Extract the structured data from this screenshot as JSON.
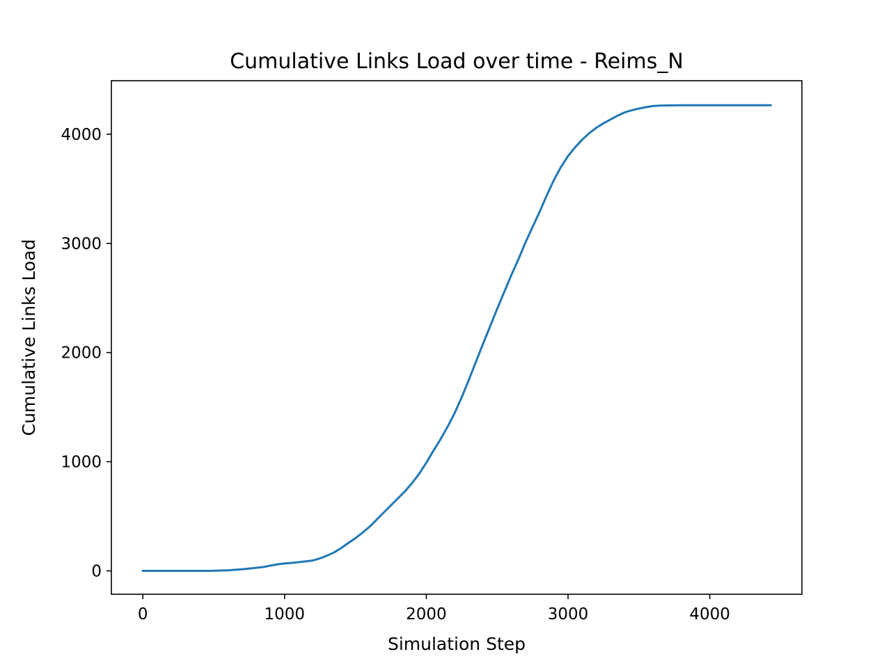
{
  "chart_data": {
    "type": "line",
    "title": "Cumulative Links Load over time - Reims_N",
    "xlabel": "Simulation Step",
    "ylabel": "Cumulative Links Load",
    "xlim": [
      -222,
      4650
    ],
    "ylim": [
      -214,
      4490
    ],
    "xticks": [
      0,
      1000,
      2000,
      3000,
      4000
    ],
    "xtick_labels": [
      "0",
      "1000",
      "2000",
      "3000",
      "4000"
    ],
    "yticks": [
      0,
      1000,
      2000,
      3000,
      4000
    ],
    "ytick_labels": [
      "0",
      "1000",
      "2000",
      "3000",
      "4000"
    ],
    "grid": false,
    "series": [
      {
        "color": "#1f77b4",
        "x": [
          0,
          200,
          400,
          480,
          600,
          700,
          800,
          850,
          900,
          950,
          1000,
          1050,
          1100,
          1150,
          1200,
          1250,
          1300,
          1350,
          1400,
          1450,
          1500,
          1550,
          1600,
          1650,
          1700,
          1750,
          1800,
          1850,
          1900,
          1950,
          2000,
          2050,
          2100,
          2150,
          2200,
          2250,
          2300,
          2350,
          2400,
          2450,
          2500,
          2550,
          2600,
          2650,
          2700,
          2750,
          2800,
          2850,
          2900,
          2950,
          3000,
          3050,
          3100,
          3150,
          3200,
          3250,
          3300,
          3350,
          3400,
          3450,
          3500,
          3550,
          3600,
          3650,
          3700,
          3800,
          4000,
          4200,
          4430
        ],
        "y": [
          0,
          0,
          0,
          0,
          5,
          15,
          28,
          35,
          48,
          60,
          68,
          73,
          80,
          87,
          95,
          115,
          140,
          170,
          210,
          255,
          300,
          350,
          405,
          470,
          535,
          600,
          665,
          730,
          805,
          890,
          990,
          1100,
          1205,
          1320,
          1445,
          1590,
          1750,
          1915,
          2080,
          2240,
          2400,
          2555,
          2710,
          2855,
          3010,
          3150,
          3290,
          3440,
          3580,
          3700,
          3800,
          3880,
          3950,
          4010,
          4060,
          4100,
          4135,
          4170,
          4200,
          4220,
          4235,
          4248,
          4258,
          4262,
          4264,
          4265,
          4265,
          4265,
          4265
        ]
      }
    ]
  }
}
